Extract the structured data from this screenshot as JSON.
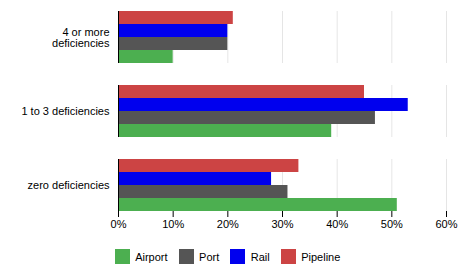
{
  "chart_data": {
    "type": "bar",
    "orientation": "horizontal",
    "categories": [
      "zero deficiencies",
      "1 to 3 deficiencies",
      "4 or more\ndeficiencies"
    ],
    "series": [
      {
        "name": "Airport",
        "color": "#4caf50",
        "values": [
          0.51,
          0.39,
          0.1
        ]
      },
      {
        "name": "Port",
        "color": "#555555",
        "values": [
          0.31,
          0.47,
          0.2
        ]
      },
      {
        "name": "Rail",
        "color": "#0000ee",
        "values": [
          0.28,
          0.53,
          0.2
        ]
      },
      {
        "name": "Pipeline",
        "color": "#cc4444",
        "values": [
          0.33,
          0.45,
          0.21
        ]
      }
    ],
    "xlim": [
      0,
      0.6
    ],
    "xticks": [
      {
        "value": 0.0,
        "label": "0%"
      },
      {
        "value": 0.1,
        "label": "10%"
      },
      {
        "value": 0.2,
        "label": "20%"
      },
      {
        "value": 0.3,
        "label": "30%"
      },
      {
        "value": 0.4,
        "label": "40%"
      },
      {
        "value": 0.5,
        "label": "50%"
      },
      {
        "value": 0.6,
        "label": "60%"
      }
    ],
    "grid": true,
    "legend": "bottom"
  }
}
